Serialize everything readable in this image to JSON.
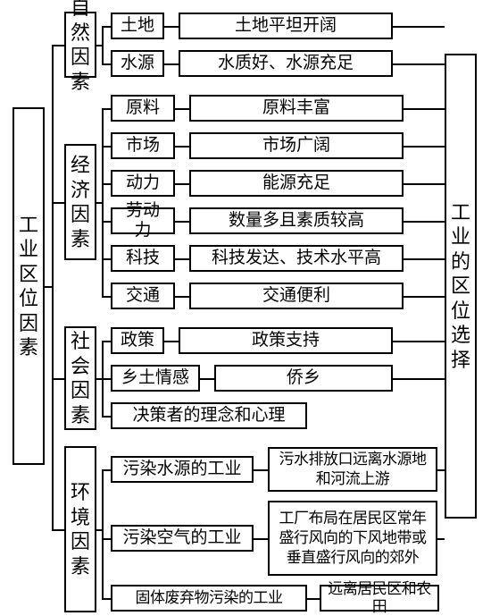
{
  "root": {
    "label": "工业区位因素"
  },
  "dest": {
    "label": "工业的区位选择"
  },
  "categories": [
    {
      "id": "nat",
      "label": "自然因素",
      "items": [
        {
          "id": "land",
          "label": "土地",
          "desc": "土地平坦开阔"
        },
        {
          "id": "water",
          "label": "水源",
          "desc": "水质好、水源充足"
        }
      ]
    },
    {
      "id": "econ",
      "label": "经济因素",
      "items": [
        {
          "id": "raw",
          "label": "原料",
          "desc": "原料丰富"
        },
        {
          "id": "mkt",
          "label": "市场",
          "desc": "市场广阔"
        },
        {
          "id": "pow",
          "label": "动力",
          "desc": "能源充足"
        },
        {
          "id": "lab",
          "label": "劳动力",
          "desc": "数量多且素质较高"
        },
        {
          "id": "tech",
          "label": "科技",
          "desc": "科技发达、技术水平高"
        },
        {
          "id": "traf",
          "label": "交通",
          "desc": "交通便利"
        }
      ]
    },
    {
      "id": "soc",
      "label": "社会因素",
      "items": [
        {
          "id": "pol",
          "label": "政策",
          "desc": "政策支持"
        },
        {
          "id": "home",
          "label": "乡土情感",
          "desc": "侨乡"
        },
        {
          "id": "mind",
          "label": "决策者的理念和心理"
        }
      ]
    },
    {
      "id": "env",
      "label": "环境因素",
      "items": [
        {
          "id": "wpol",
          "label": "污染水源的工业",
          "desc": "污水排放口远离水源地和河流上游"
        },
        {
          "id": "apol",
          "label": "污染空气的工业",
          "desc": "工厂布局在居民区常年盛行风向的下风地带或垂直盛行风向的郊外"
        },
        {
          "id": "solid",
          "label": "固体废弃物污染的工业",
          "desc": "远离居民区和农田"
        }
      ]
    }
  ],
  "style": {
    "border_color": "#000000",
    "background_color": "#ffffff",
    "text_color": "#000000",
    "font_family": "SimSun",
    "root_fontsize": 22,
    "box_fontsize": 19,
    "small_fontsize": 17,
    "line_width": 2
  }
}
